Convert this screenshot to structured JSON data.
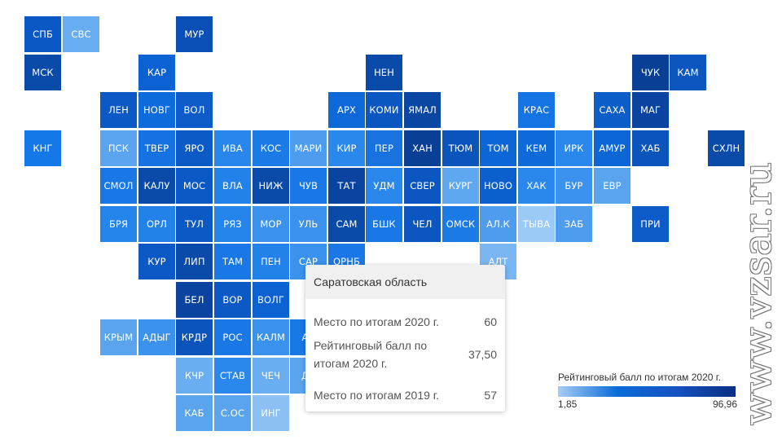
{
  "map": {
    "tiles": [
      {
        "label": "СПБ",
        "row": 0,
        "col": 0,
        "color": "#0b58c4"
      },
      {
        "label": "СВС",
        "row": 0,
        "col": 1,
        "color": "#68acf2"
      },
      {
        "label": "МУР",
        "row": 0,
        "col": 4,
        "color": "#0a4fb6"
      },
      {
        "label": "МСК",
        "row": 1,
        "col": 0,
        "color": "#0a4aa8"
      },
      {
        "label": "КАР",
        "row": 1,
        "col": 3,
        "color": "#0c62d2"
      },
      {
        "label": "НЕН",
        "row": 1,
        "col": 9,
        "color": "#0a4aa8"
      },
      {
        "label": "ЧУК",
        "row": 1,
        "col": 16,
        "color": "#0a3f96"
      },
      {
        "label": "КАМ",
        "row": 1,
        "col": 17,
        "color": "#0c56c0"
      },
      {
        "label": "ЛЕН",
        "row": 2,
        "col": 2,
        "color": "#0c58c4"
      },
      {
        "label": "НОВГ",
        "row": 2,
        "col": 3,
        "color": "#0e6bdc"
      },
      {
        "label": "ВОЛ",
        "row": 2,
        "col": 4,
        "color": "#0c5bc8"
      },
      {
        "label": "АРХ",
        "row": 2,
        "col": 8,
        "color": "#0e68d8"
      },
      {
        "label": "КОМИ",
        "row": 2,
        "col": 9,
        "color": "#0b57c2"
      },
      {
        "label": "ЯМАЛ",
        "row": 2,
        "col": 10,
        "color": "#0a47a2"
      },
      {
        "label": "КРАС",
        "row": 2,
        "col": 13,
        "color": "#1574e4"
      },
      {
        "label": "САХА",
        "row": 2,
        "col": 15,
        "color": "#0b5ec8"
      },
      {
        "label": "МАГ",
        "row": 2,
        "col": 16,
        "color": "#0a44a0"
      },
      {
        "label": "КНГ",
        "row": 3,
        "col": 0,
        "color": "#1578e8"
      },
      {
        "label": "ПСК",
        "row": 3,
        "col": 2,
        "color": "#5ba4f0"
      },
      {
        "label": "ТВЕР",
        "row": 3,
        "col": 3,
        "color": "#1672e2"
      },
      {
        "label": "ЯРО",
        "row": 3,
        "col": 4,
        "color": "#0c5ac6"
      },
      {
        "label": "ИВА",
        "row": 3,
        "col": 5,
        "color": "#2886ec"
      },
      {
        "label": "КОС",
        "row": 3,
        "col": 6,
        "color": "#1a7ae6"
      },
      {
        "label": "МАРИ",
        "row": 3,
        "col": 7,
        "color": "#4e9cee"
      },
      {
        "label": "КИР",
        "row": 3,
        "col": 8,
        "color": "#2a88ec"
      },
      {
        "label": "ПЕР",
        "row": 3,
        "col": 9,
        "color": "#1872e0"
      },
      {
        "label": "ХАН",
        "row": 3,
        "col": 10,
        "color": "#0a3f96"
      },
      {
        "label": "ТЮМ",
        "row": 3,
        "col": 11,
        "color": "#0b54bc"
      },
      {
        "label": "ТОМ",
        "row": 3,
        "col": 12,
        "color": "#0d66d6"
      },
      {
        "label": "КЕМ",
        "row": 3,
        "col": 13,
        "color": "#0e6ad8"
      },
      {
        "label": "ИРК",
        "row": 3,
        "col": 14,
        "color": "#2a88ec"
      },
      {
        "label": "АМУР",
        "row": 3,
        "col": 15,
        "color": "#0d66d6"
      },
      {
        "label": "ХАБ",
        "row": 3,
        "col": 16,
        "color": "#0b54bc"
      },
      {
        "label": "СХЛН",
        "row": 3,
        "col": 18,
        "color": "#0a4aa8"
      },
      {
        "label": "СМОЛ",
        "row": 4,
        "col": 2,
        "color": "#1a78e6"
      },
      {
        "label": "КАЛУ",
        "row": 4,
        "col": 3,
        "color": "#0a4aa8"
      },
      {
        "label": "МОС",
        "row": 4,
        "col": 4,
        "color": "#0c58c4"
      },
      {
        "label": "ВЛА",
        "row": 4,
        "col": 5,
        "color": "#2282ea"
      },
      {
        "label": "НИЖ",
        "row": 4,
        "col": 6,
        "color": "#0a4aa8"
      },
      {
        "label": "ЧУВ",
        "row": 4,
        "col": 7,
        "color": "#1a78e6"
      },
      {
        "label": "ТАТ",
        "row": 4,
        "col": 8,
        "color": "#0a44a0"
      },
      {
        "label": "УДМ",
        "row": 4,
        "col": 9,
        "color": "#2a88ec"
      },
      {
        "label": "СВЕР",
        "row": 4,
        "col": 10,
        "color": "#0b56c0"
      },
      {
        "label": "КУРГ",
        "row": 4,
        "col": 11,
        "color": "#5fa8f0"
      },
      {
        "label": "НОВО",
        "row": 4,
        "col": 12,
        "color": "#0c60ce"
      },
      {
        "label": "ХАК",
        "row": 4,
        "col": 13,
        "color": "#2a88ec"
      },
      {
        "label": "БУР",
        "row": 4,
        "col": 14,
        "color": "#3a92ec"
      },
      {
        "label": "ЕВР",
        "row": 4,
        "col": 15,
        "color": "#5aa4ee"
      },
      {
        "label": "БРЯ",
        "row": 5,
        "col": 2,
        "color": "#2484ea"
      },
      {
        "label": "ОРЛ",
        "row": 5,
        "col": 3,
        "color": "#2282ea"
      },
      {
        "label": "ТУЛ",
        "row": 5,
        "col": 4,
        "color": "#0c58c4"
      },
      {
        "label": "РЯЗ",
        "row": 5,
        "col": 5,
        "color": "#2484ea"
      },
      {
        "label": "МОР",
        "row": 5,
        "col": 6,
        "color": "#3a92ec"
      },
      {
        "label": "УЛЬ",
        "row": 5,
        "col": 7,
        "color": "#3a92ec"
      },
      {
        "label": "САМ",
        "row": 5,
        "col": 8,
        "color": "#0a4aa8"
      },
      {
        "label": "БШК",
        "row": 5,
        "col": 9,
        "color": "#1a78e6"
      },
      {
        "label": "ЧЕЛ",
        "row": 5,
        "col": 10,
        "color": "#0b56c0"
      },
      {
        "label": "ОМСК",
        "row": 5,
        "col": 11,
        "color": "#1a7ae6"
      },
      {
        "label": "АЛ.К",
        "row": 5,
        "col": 12,
        "color": "#4e9cee"
      },
      {
        "label": "ТЫВА",
        "row": 5,
        "col": 13,
        "color": "#9ccaf6"
      },
      {
        "label": "ЗАБ",
        "row": 5,
        "col": 14,
        "color": "#4e9cee"
      },
      {
        "label": "ПРИ",
        "row": 5,
        "col": 16,
        "color": "#0c5bc8"
      },
      {
        "label": "КУР",
        "row": 6,
        "col": 3,
        "color": "#0c58c4"
      },
      {
        "label": "ЛИП",
        "row": 6,
        "col": 4,
        "color": "#0a4aa8"
      },
      {
        "label": "ТАМ",
        "row": 6,
        "col": 5,
        "color": "#1a78e6"
      },
      {
        "label": "ПЕН",
        "row": 6,
        "col": 6,
        "color": "#2282ea"
      },
      {
        "label": "САР",
        "row": 6,
        "col": 7,
        "color": "#3a92ec"
      },
      {
        "label": "ОРНБ",
        "row": 6,
        "col": 8,
        "color": "#1a78e6"
      },
      {
        "label": "АЛТ",
        "row": 6,
        "col": 12,
        "color": "#7ab6f2"
      },
      {
        "label": "БЕЛ",
        "row": 7,
        "col": 4,
        "color": "#0a44a0"
      },
      {
        "label": "ВОР",
        "row": 7,
        "col": 5,
        "color": "#0c58c4"
      },
      {
        "label": "ВОЛГ",
        "row": 7,
        "col": 6,
        "color": "#0d62d2"
      },
      {
        "label": "КРЫМ",
        "row": 8,
        "col": 2,
        "color": "#5aa4ee"
      },
      {
        "label": "АДЫГ",
        "row": 8,
        "col": 3,
        "color": "#3a92ec"
      },
      {
        "label": "КРДР",
        "row": 8,
        "col": 4,
        "color": "#0b54bc"
      },
      {
        "label": "РОС",
        "row": 8,
        "col": 5,
        "color": "#1a78e6"
      },
      {
        "label": "КАЛМ",
        "row": 8,
        "col": 6,
        "color": "#3a92ec"
      },
      {
        "label": "АС",
        "row": 8,
        "col": 7,
        "color": "#1a78e6"
      },
      {
        "label": "КЧР",
        "row": 9,
        "col": 4,
        "color": "#6aaef2"
      },
      {
        "label": "СТАВ",
        "row": 9,
        "col": 5,
        "color": "#2a88ec"
      },
      {
        "label": "ЧЕЧ",
        "row": 9,
        "col": 6,
        "color": "#6aaef2"
      },
      {
        "label": "ДА",
        "row": 9,
        "col": 7,
        "color": "#5aa4ee"
      },
      {
        "label": "КАБ",
        "row": 10,
        "col": 4,
        "color": "#5aa4ee"
      },
      {
        "label": "С.ОС",
        "row": 10,
        "col": 5,
        "color": "#5aa4ee"
      },
      {
        "label": "ИНГ",
        "row": 10,
        "col": 6,
        "color": "#8cc0f4"
      }
    ]
  },
  "tooltip": {
    "title": "Саратовская область",
    "rows": [
      {
        "label": "Место по итогам 2020 г.",
        "value": "60"
      },
      {
        "label": "Рейтинговый балл по итогам 2020 г.",
        "value": "37,50"
      },
      {
        "label": "Место по итогам 2019 г.",
        "value": "57"
      }
    ]
  },
  "legend": {
    "title": "Рейтинговый балл по итогам 2020 г.",
    "min": "1,85",
    "max": "96,96"
  },
  "watermark": {
    "text": "www.vzsar.ru"
  }
}
